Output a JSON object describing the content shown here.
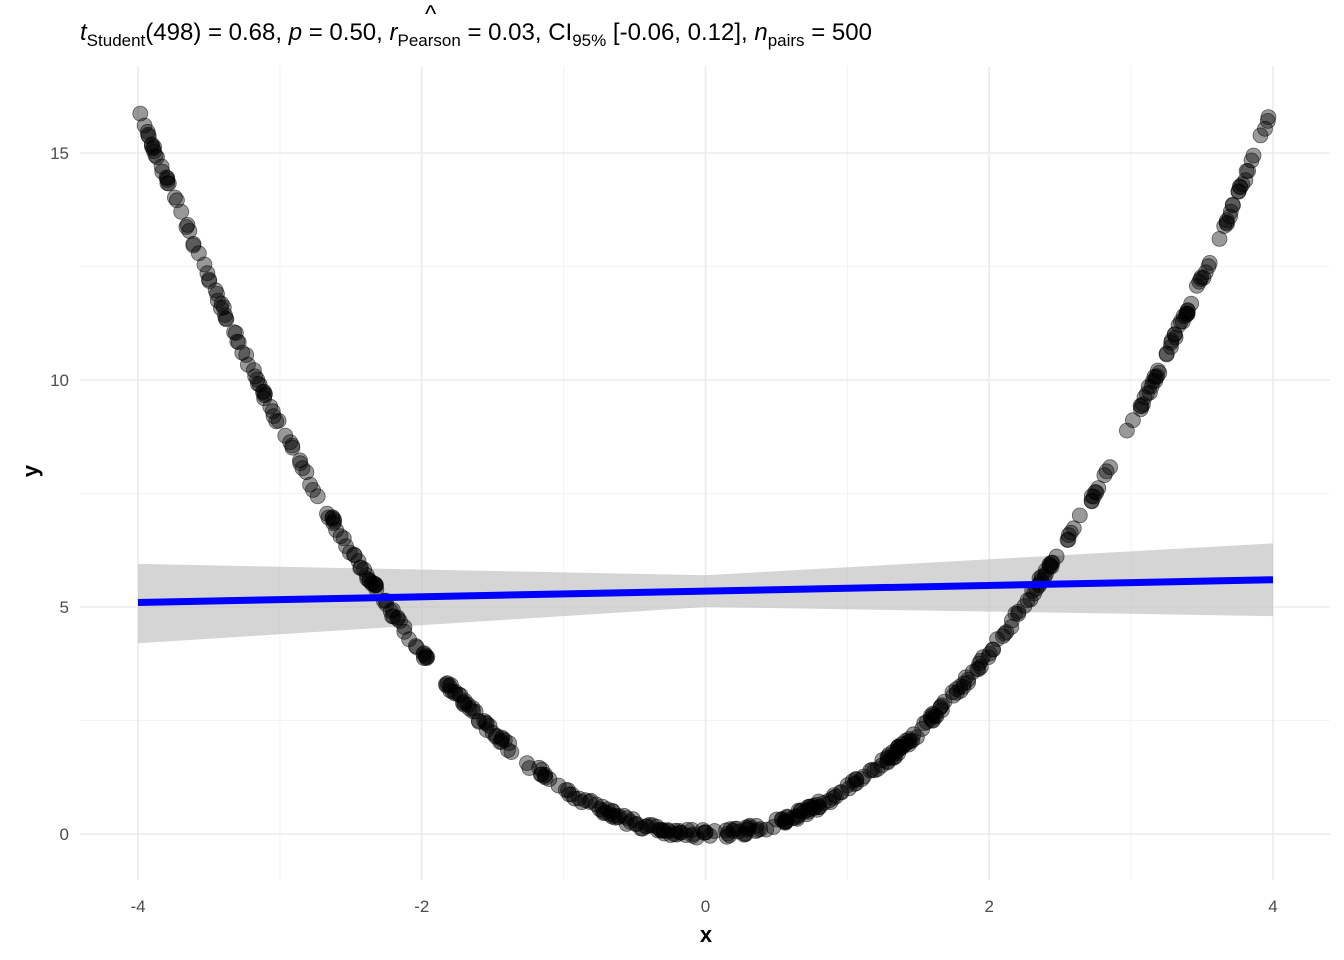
{
  "subtitle": {
    "t_symbol": "t",
    "t_sub": "Student",
    "df": "(498)",
    "eq1": " = 0.68, ",
    "p_symbol": "p",
    "eq2": " = 0.50, ",
    "r_symbol": "r",
    "r_hat": "^",
    "r_sub": "Pearson",
    "eq3": " = 0.03, CI",
    "ci_sub": "95%",
    "ci_text": " [-0.06, 0.12], ",
    "n_symbol": "n",
    "n_sub": "pairs",
    "eq4": " = 500"
  },
  "chart_data": {
    "type": "scatter",
    "xlabel": "x",
    "ylabel": "y",
    "xlim": [
      -4.0,
      4.0
    ],
    "ylim": [
      -0.25,
      16.1
    ],
    "x_ticks": [
      -4,
      -2,
      0,
      2,
      4
    ],
    "x_tick_labels": [
      "-4",
      "-2",
      "0",
      "2",
      "4"
    ],
    "y_ticks": [
      0,
      5,
      10,
      15
    ],
    "y_tick_labels": [
      "0",
      "5",
      "10",
      "15"
    ],
    "x_minor_grid": [
      -3,
      -1,
      1,
      3
    ],
    "y_minor_grid": [
      2.5,
      7.5,
      12.5
    ],
    "grid": true,
    "points_description": "500 points on y = x^2 for x in [-4, 4]",
    "point_count": 500,
    "relation": "y = x^2",
    "regression_line": {
      "x": [
        -4.0,
        4.0
      ],
      "y": [
        5.1,
        5.6
      ]
    },
    "confidence_band": {
      "x": [
        -4.0,
        0.0,
        4.0
      ],
      "lower": [
        4.2,
        5.0,
        4.8
      ],
      "upper": [
        5.95,
        5.7,
        6.4
      ]
    },
    "colors": {
      "point_fill": "#000000",
      "point_stroke": "#000000",
      "line": "#0000ff",
      "band": "#bfbfbf",
      "grid_major": "#ebebeb",
      "grid_minor": "#f3f3f3"
    }
  }
}
